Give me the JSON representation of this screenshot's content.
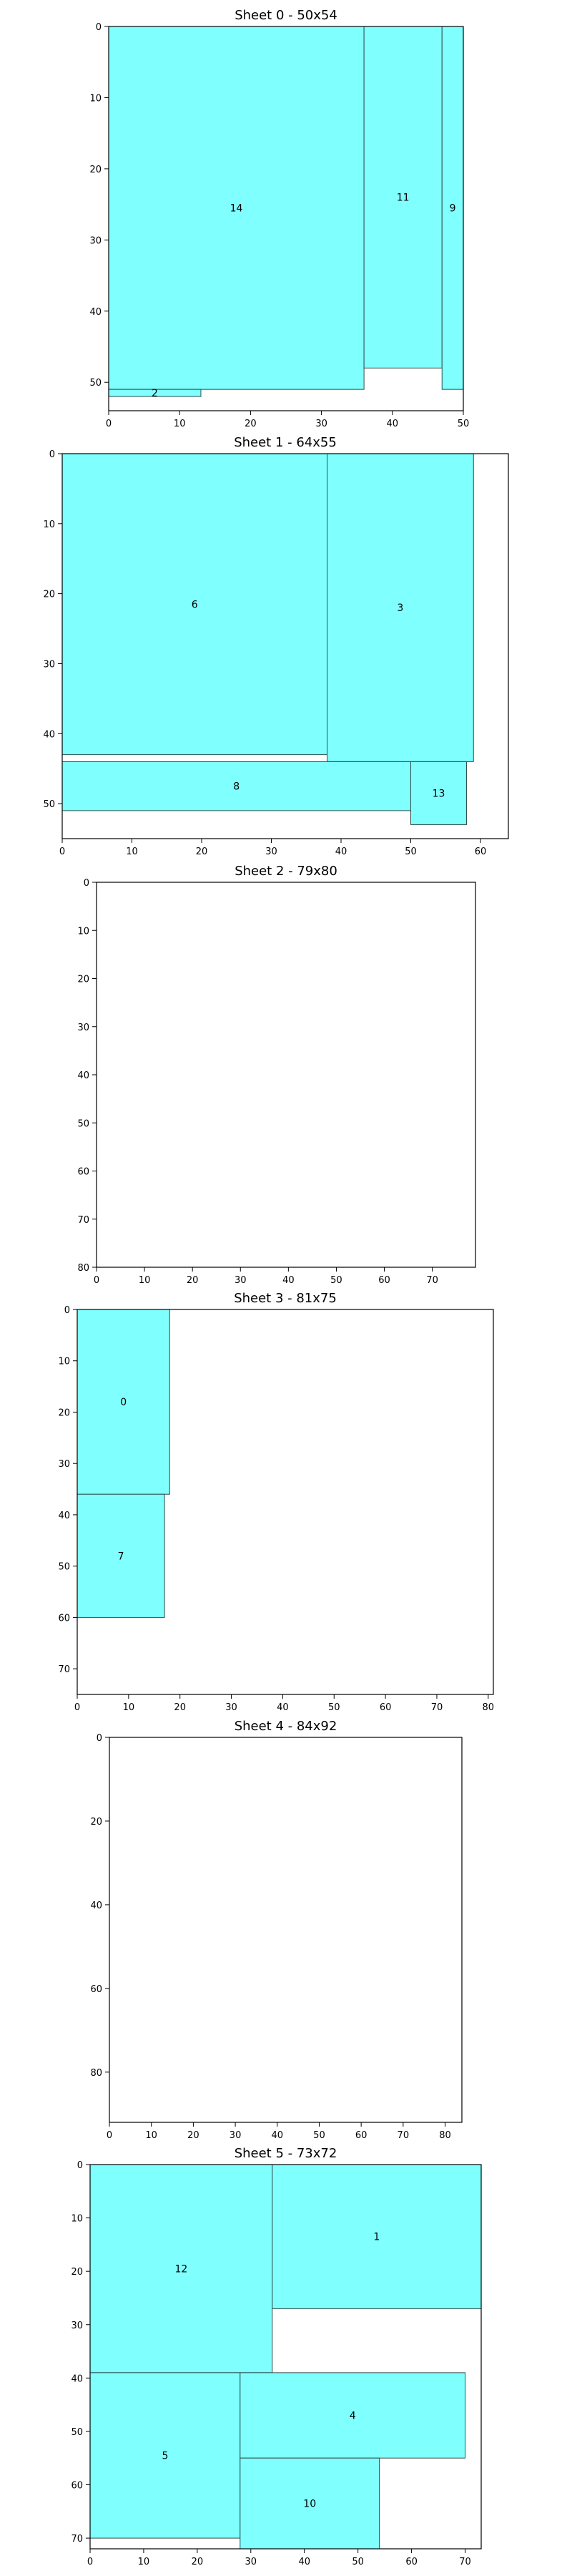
{
  "colors": {
    "fill": "#80ffff",
    "edge": "#2f4f4f",
    "axis": "#000000",
    "background": "#ffffff"
  },
  "chart_data": [
    {
      "type": "rectangles",
      "title": "Sheet 0 - 50x54",
      "width": 50,
      "height": 54,
      "x_ticks": [
        "0",
        "10",
        "20",
        "30",
        "40",
        "50"
      ],
      "y_ticks": [
        "0",
        "10",
        "20",
        "30",
        "40",
        "50"
      ],
      "y_axis": "inverted",
      "rects": [
        {
          "label": "14",
          "x": 0,
          "y": 0,
          "w": 36,
          "h": 51
        },
        {
          "label": "11",
          "x": 36,
          "y": 0,
          "w": 11,
          "h": 48
        },
        {
          "label": "9",
          "x": 47,
          "y": 0,
          "w": 3,
          "h": 51
        },
        {
          "label": "2",
          "x": 0,
          "y": 51,
          "w": 13,
          "h": 1
        }
      ]
    },
    {
      "type": "rectangles",
      "title": "Sheet 1 - 64x55",
      "width": 64,
      "height": 55,
      "x_ticks": [
        "0",
        "10",
        "20",
        "30",
        "40",
        "50",
        "60"
      ],
      "y_ticks": [
        "0",
        "10",
        "20",
        "30",
        "40",
        "50"
      ],
      "y_axis": "inverted",
      "rects": [
        {
          "label": "6",
          "x": 0,
          "y": 0,
          "w": 38,
          "h": 43
        },
        {
          "label": "3",
          "x": 38,
          "y": 0,
          "w": 21,
          "h": 44
        },
        {
          "label": "8",
          "x": 0,
          "y": 44,
          "w": 50,
          "h": 7
        },
        {
          "label": "13",
          "x": 50,
          "y": 44,
          "w": 8,
          "h": 9
        }
      ]
    },
    {
      "type": "rectangles",
      "title": "Sheet 2 - 79x80",
      "width": 79,
      "height": 80,
      "x_ticks": [
        "0",
        "10",
        "20",
        "30",
        "40",
        "50",
        "60",
        "70"
      ],
      "y_ticks": [
        "0",
        "10",
        "20",
        "30",
        "40",
        "50",
        "60",
        "70",
        "80"
      ],
      "y_axis": "inverted",
      "rects": []
    },
    {
      "type": "rectangles",
      "title": "Sheet 3 - 81x75",
      "width": 81,
      "height": 75,
      "x_ticks": [
        "0",
        "10",
        "20",
        "30",
        "40",
        "50",
        "60",
        "70",
        "80"
      ],
      "y_ticks": [
        "0",
        "10",
        "20",
        "30",
        "40",
        "50",
        "60",
        "70"
      ],
      "y_axis": "inverted",
      "rects": [
        {
          "label": "0",
          "x": 0,
          "y": 0,
          "w": 18,
          "h": 36
        },
        {
          "label": "7",
          "x": 0,
          "y": 36,
          "w": 17,
          "h": 24
        }
      ]
    },
    {
      "type": "rectangles",
      "title": "Sheet 4 - 84x92",
      "width": 84,
      "height": 92,
      "x_ticks": [
        "0",
        "10",
        "20",
        "30",
        "40",
        "50",
        "60",
        "70",
        "80"
      ],
      "y_ticks": [
        "0",
        "20",
        "40",
        "60",
        "80"
      ],
      "y_axis": "inverted",
      "rects": []
    },
    {
      "type": "rectangles",
      "title": "Sheet 5 - 73x72",
      "width": 73,
      "height": 72,
      "x_ticks": [
        "0",
        "10",
        "20",
        "30",
        "40",
        "50",
        "60",
        "70"
      ],
      "y_ticks": [
        "0",
        "10",
        "20",
        "30",
        "40",
        "50",
        "60",
        "70"
      ],
      "y_axis": "inverted",
      "rects": [
        {
          "label": "12",
          "x": 0,
          "y": 0,
          "w": 34,
          "h": 39
        },
        {
          "label": "1",
          "x": 34,
          "y": 0,
          "w": 39,
          "h": 27
        },
        {
          "label": "5",
          "x": 0,
          "y": 39,
          "w": 28,
          "h": 31
        },
        {
          "label": "4",
          "x": 28,
          "y": 39,
          "w": 42,
          "h": 16
        },
        {
          "label": "10",
          "x": 28,
          "y": 55,
          "w": 26,
          "h": 17
        }
      ]
    }
  ]
}
